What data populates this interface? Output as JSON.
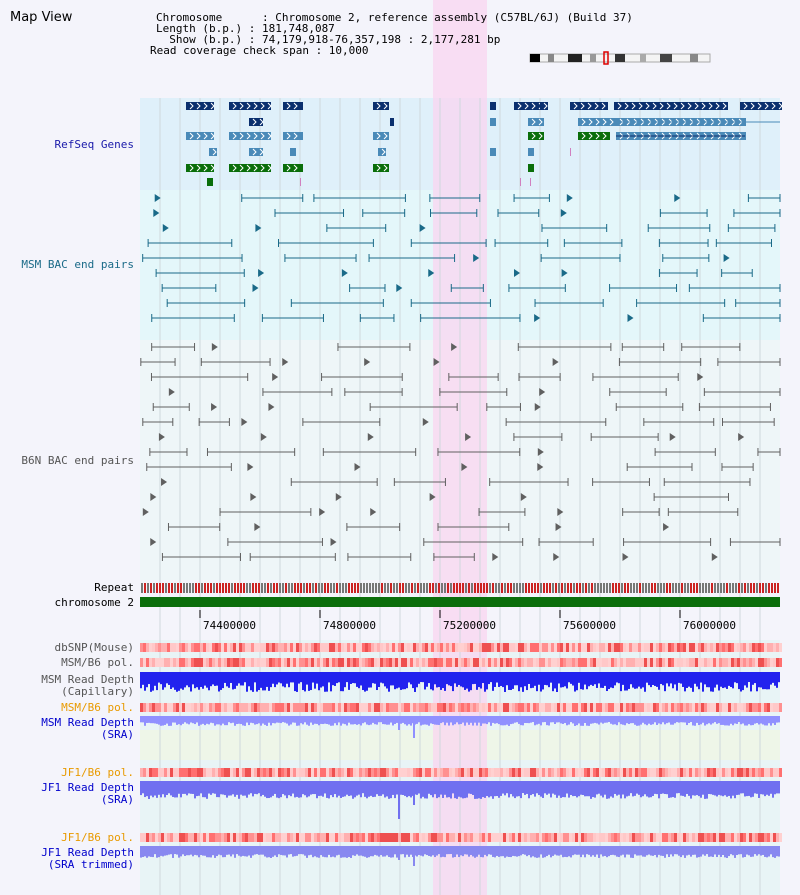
{
  "header": {
    "title": "Map View",
    "info_lines": [
      "Chromosome      : Chromosome 2, reference assembly (C57BL/6J) (Build 37)",
      "Length (b.p.) : 181,748,087",
      "  Show (b.p.) : 74,179,918-76,357,198 : 2,177,281 bp",
      "Read coverage check span : 10,000"
    ]
  },
  "tracks": {
    "refseq": "RefSeq Genes",
    "msm_bac": "MSM BAC end pairs",
    "b6n_bac": "B6N BAC end pairs",
    "repeat": "Repeat",
    "chromosome": "chromosome 2",
    "dbsnp": "dbSNP(Mouse)",
    "msm_b6_pol": "MSM/B6 pol.",
    "msm_depth_cap_1": "MSM Read Depth",
    "msm_depth_cap_2": "(Capillary)",
    "msm_b6_pol_2": "MSM/B6 pol.",
    "msm_depth_sra_1": "MSM Read Depth",
    "msm_depth_sra_2": "(SRA)",
    "jf1_b6_pol": "JF1/B6 pol.",
    "jf1_depth_sra_1": "JF1 Read Depth",
    "jf1_depth_sra_2": "(SRA)",
    "jf1_b6_pol_2": "JF1/B6 pol.",
    "jf1_depth_trim_1": "JF1 Read Depth",
    "jf1_depth_trim_2": "(SRA trimmed)"
  },
  "ruler": {
    "ticks": [
      "74400000",
      "74800000",
      "75200000",
      "75600000",
      "76000000"
    ]
  },
  "colors": {
    "refseq_bg": "#dff0fa",
    "msm_bg": "#e4f7fa",
    "highlight": "#f9d6f0",
    "gene_navy": "#0a2f6e",
    "gene_steel": "#4a8ab8",
    "gene_green": "#0a6e0a",
    "msm_bac": "#1a6a88",
    "b6n_bac": "#606060",
    "chromosome": "#0b6e0b",
    "orange_label": "#e89a00",
    "blue_label": "#0000cc"
  }
}
